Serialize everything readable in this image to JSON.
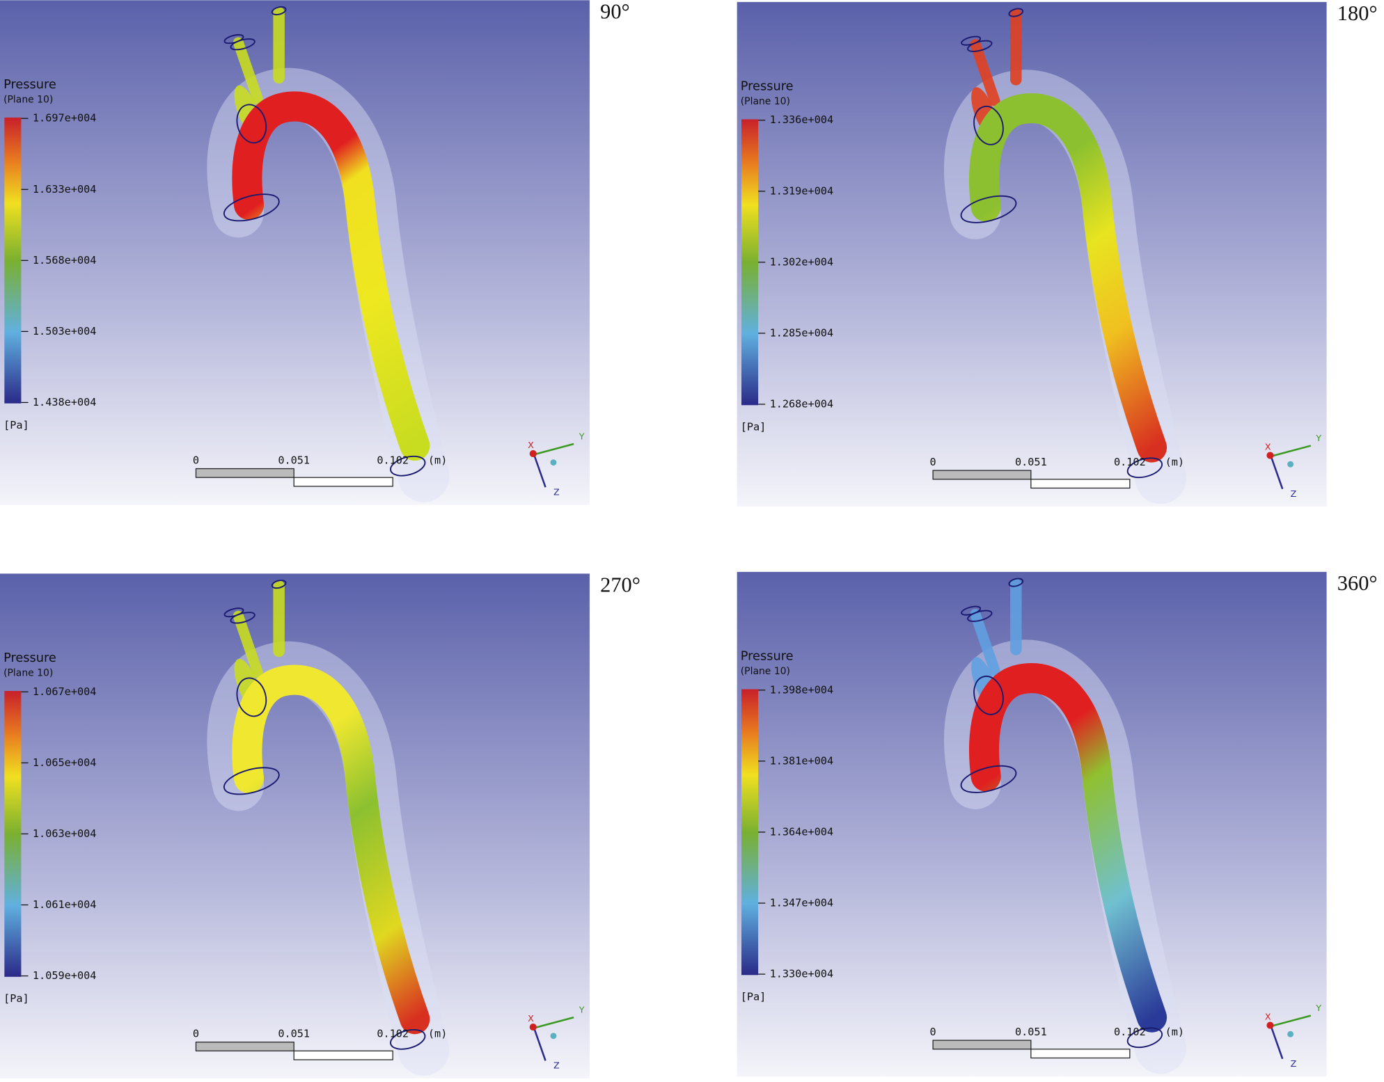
{
  "panels": [
    {
      "angle": "90°",
      "legend": {
        "title": "Pressure",
        "subtitle": "(Plane  10)",
        "ticks": [
          "1.697e+004",
          "1.633e+004",
          "1.568e+004",
          "1.503e+004",
          "1.438e+004"
        ],
        "unit": "[Pa]"
      },
      "scale": {
        "labels": [
          "0",
          "0.051",
          "0.102",
          "(m)"
        ]
      },
      "axes": [
        "X",
        "Y",
        "Z"
      ]
    },
    {
      "angle": "180°",
      "legend": {
        "title": "Pressure",
        "subtitle": "(Plane  10)",
        "ticks": [
          "1.336e+004",
          "1.319e+004",
          "1.302e+004",
          "1.285e+004",
          "1.268e+004"
        ],
        "unit": "[Pa]"
      },
      "scale": {
        "labels": [
          "0",
          "0.051",
          "0.102",
          "(m)"
        ]
      },
      "axes": [
        "X",
        "Y",
        "Z"
      ]
    },
    {
      "angle": "270°",
      "legend": {
        "title": "Pressure",
        "subtitle": "(Plane  10)",
        "ticks": [
          "1.067e+004",
          "1.065e+004",
          "1.063e+004",
          "1.061e+004",
          "1.059e+004"
        ],
        "unit": "[Pa]"
      },
      "scale": {
        "labels": [
          "0",
          "0.051",
          "0.102",
          "(m)"
        ]
      },
      "axes": [
        "X",
        "Y",
        "Z"
      ]
    },
    {
      "angle": "360°",
      "legend": {
        "title": "Pressure",
        "subtitle": "(Plane  10)",
        "ticks": [
          "1.398e+004",
          "1.381e+004",
          "1.364e+004",
          "1.347e+004",
          "1.330e+004"
        ],
        "unit": "[Pa]"
      },
      "scale": {
        "labels": [
          "0",
          "0.051",
          "0.102",
          "(m)"
        ]
      },
      "axes": [
        "X",
        "Y",
        "Z"
      ]
    }
  ]
}
